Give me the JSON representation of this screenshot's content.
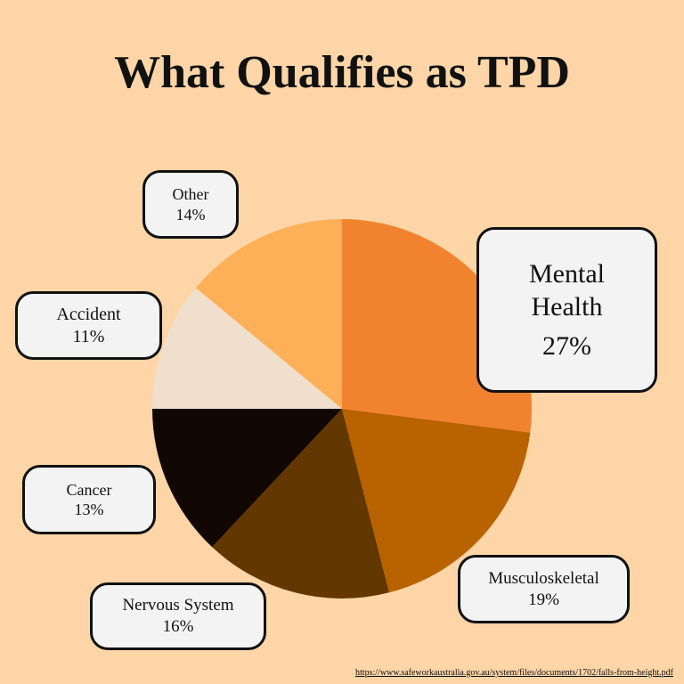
{
  "chart_data": {
    "type": "pie",
    "title": "What Qualifies as TPD",
    "categories": [
      "Mental Health",
      "Musculoskeletal",
      "Nervous System",
      "Cancer",
      "Accident",
      "Other"
    ],
    "values": [
      27,
      19,
      16,
      13,
      11,
      14
    ],
    "value_labels": [
      "27%",
      "19%",
      "16%",
      "13%",
      "11%",
      "14%"
    ],
    "colors": [
      "#f2832e",
      "#b86200",
      "#633700",
      "#120803",
      "#f0dfcc",
      "#fdb058"
    ],
    "source": "https://www.safeworkaustralia.gov.au/system/files/documents/1702/falls-from-height.pdf"
  }
}
